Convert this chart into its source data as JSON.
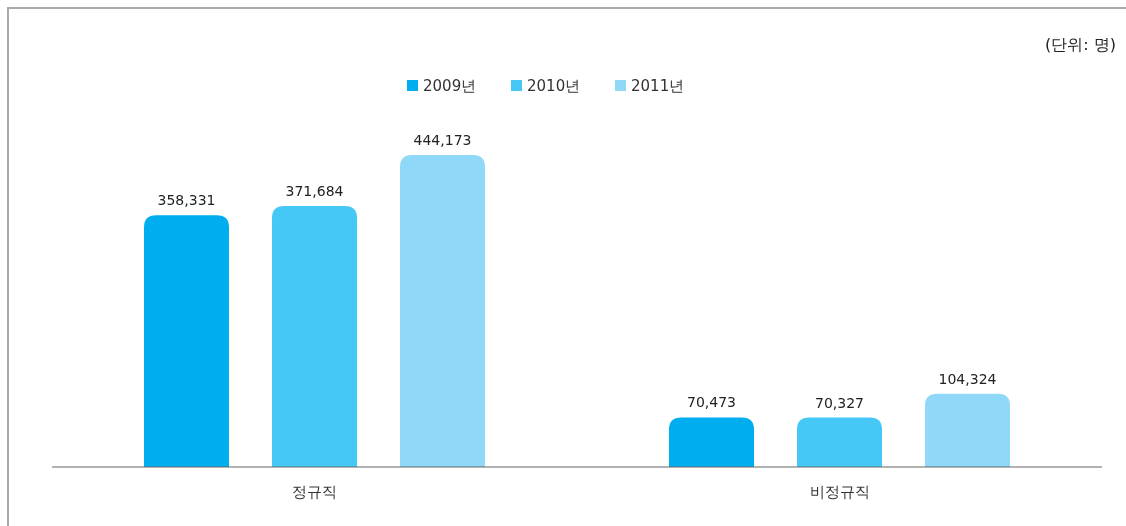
{
  "chart_data": {
    "type": "bar",
    "categories": [
      "정규직",
      "비정규직"
    ],
    "series": [
      {
        "name": "2009년",
        "color": "#00aeef",
        "values": [
          358331,
          70473
        ],
        "value_labels": [
          "358,331",
          "70,473"
        ]
      },
      {
        "name": "2010년",
        "color": "#45c8f5",
        "values": [
          371684,
          70327
        ],
        "value_labels": [
          "371,684",
          "70,327"
        ]
      },
      {
        "name": "2011년",
        "color": "#8fd8f8",
        "values": [
          444173,
          104324
        ],
        "value_labels": [
          "444,173",
          "104,324"
        ]
      }
    ],
    "legend": "top",
    "annotations": [
      "(단위:  명)"
    ]
  }
}
